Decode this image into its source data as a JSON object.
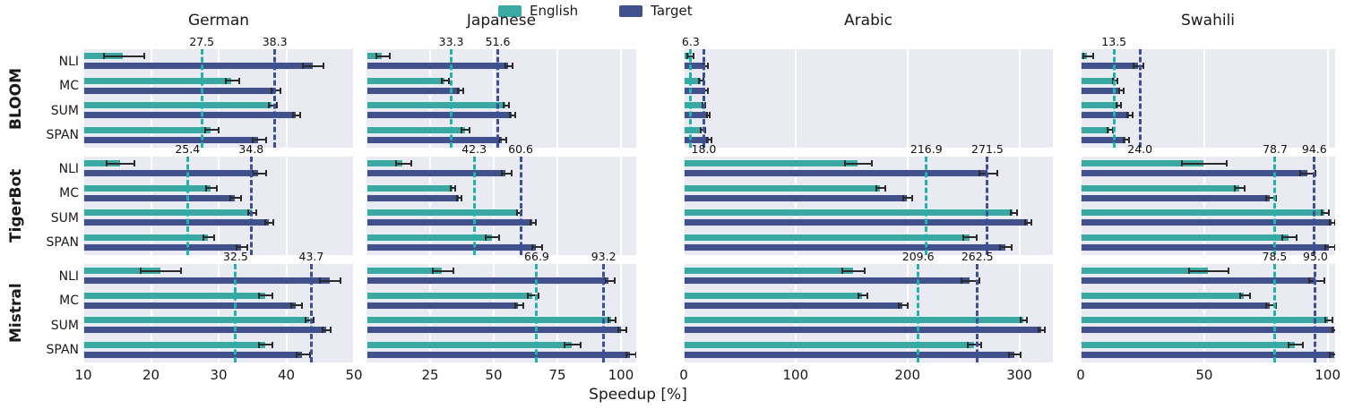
{
  "chart_data": {
    "type": "bar",
    "orientation": "horizontal",
    "xlabel": "Speedup [%]",
    "grid": true,
    "legend": [
      "English",
      "Target"
    ],
    "legend_position": "top-center",
    "colors": {
      "english": "#3ba8a4",
      "target": "#41518c",
      "english_line": "#22b2ae",
      "target_line": "#3b4f9e",
      "panel_bg": "#eaeaf2",
      "grid": "#ffffff",
      "error": "#2b2b2b"
    },
    "categories": [
      "NLI",
      "MC",
      "SUM",
      "SPAN"
    ],
    "columns": [
      {
        "title": "German",
        "xmin": 10,
        "xmax": 50,
        "ticks": [
          10,
          20,
          30,
          40,
          50
        ]
      },
      {
        "title": "Japanese",
        "xmin": 0,
        "xmax": 106,
        "ticks": [
          25,
          50,
          75,
          100
        ]
      },
      {
        "title": "Arabic",
        "xmin": 0,
        "xmax": 330,
        "ticks": [
          0,
          100,
          200,
          300
        ]
      },
      {
        "title": "Swahili",
        "xmin": 0,
        "xmax": 103,
        "ticks": [
          0,
          50,
          100
        ]
      }
    ],
    "rows": [
      {
        "model": "BLOOM",
        "panels": [
          {
            "language": "German",
            "english": [
              16,
              32,
              38,
              29
            ],
            "english_err": [
              3,
              1,
              0.6,
              1
            ],
            "target": [
              44,
              38.5,
              41.5,
              36
            ],
            "target_err": [
              1.5,
              0.7,
              0.5,
              1
            ],
            "vline_english": 27.5,
            "vline_target": 38.3,
            "header_labels": [
              {
                "text": "27.5",
                "value": 27.5
              },
              {
                "text": "38.3",
                "value": 38.3
              }
            ]
          },
          {
            "language": "Japanese",
            "english": [
              6.5,
              31,
              55,
              39
            ],
            "english_err": [
              2.5,
              1.5,
              1,
              1.5
            ],
            "target": [
              56,
              37,
              57.5,
              53.5
            ],
            "target_err": [
              1.5,
              1,
              1,
              1.5
            ],
            "vline_english": 33.3,
            "vline_target": 51.6,
            "header_labels": [
              {
                "text": "33.3",
                "value": 33.3
              },
              {
                "text": "51.6",
                "value": 51.6
              }
            ]
          },
          {
            "language": "Arabic",
            "english": [
              6,
              16,
              18,
              17
            ],
            "english_err": [
              3,
              2,
              1.5,
              2
            ],
            "target": [
              20,
              20,
              22,
              23
            ],
            "target_err": [
              2,
              2,
              1.5,
              2
            ],
            "vline_english": 6.3,
            "vline_target": 18.0,
            "header_labels": [
              {
                "text": "6.3",
                "value": 6.3
              }
            ]
          },
          {
            "language": "Swahili",
            "english": [
              3,
              14,
              15.5,
              12
            ],
            "english_err": [
              2,
              1,
              1,
              1
            ],
            "target": [
              23.5,
              16.5,
              20,
              18.5
            ],
            "target_err": [
              2,
              1,
              1,
              1
            ],
            "vline_english": 13.5,
            "vline_target": 24.0,
            "header_labels": [
              {
                "text": "13.5",
                "value": 13.5
              }
            ]
          }
        ]
      },
      {
        "model": "TigerBot",
        "panels": [
          {
            "language": "German",
            "english": [
              15.5,
              29,
              35,
              28.5
            ],
            "english_err": [
              2,
              0.8,
              0.6,
              0.8
            ],
            "target": [
              36,
              32.5,
              37.5,
              33.5
            ],
            "target_err": [
              1,
              0.8,
              0.6,
              0.8
            ],
            "vline_english": 25.4,
            "vline_target": 34.8,
            "header_labels": [
              {
                "text": "25.4",
                "value": 25.4
              },
              {
                "text": "34.8",
                "value": 34.8
              }
            ]
          },
          {
            "language": "Japanese",
            "english": [
              14.5,
              34,
              60,
              49.5
            ],
            "english_err": [
              3,
              1,
              1,
              2.5
            ],
            "target": [
              55,
              36.5,
              65.5,
              67
            ],
            "target_err": [
              2,
              1,
              1,
              2
            ],
            "vline_english": 42.3,
            "vline_target": 60.6,
            "header_labels": [
              {
                "text": "42.3",
                "value": 42.3
              },
              {
                "text": "60.6",
                "value": 60.6
              }
            ]
          },
          {
            "language": "Arabic",
            "english": [
              156,
              176,
              295,
              256
            ],
            "english_err": [
              12,
              4,
              3,
              6
            ],
            "target": [
              272,
              200,
              308,
              288
            ],
            "target_err": [
              8,
              4,
              3,
              5
            ],
            "vline_english": 216.9,
            "vline_target": 271.5,
            "header_labels": [
              {
                "text": "18.0",
                "value": 18
              },
              {
                "text": "216.9",
                "value": 216.9
              },
              {
                "text": "271.5",
                "value": 271.5
              }
            ]
          },
          {
            "language": "Swahili",
            "english": [
              50,
              64.5,
              99,
              84.5
            ],
            "english_err": [
              9,
              2,
              1.5,
              3
            ],
            "target": [
              92,
              77,
              102,
              101
            ],
            "target_err": [
              3,
              2,
              1,
              2
            ],
            "vline_english": 78.7,
            "vline_target": 94.6,
            "header_labels": [
              {
                "text": "24.0",
                "value": 24
              },
              {
                "text": "78.7",
                "value": 78.7
              },
              {
                "text": "94.6",
                "value": 94.6
              }
            ]
          }
        ]
      },
      {
        "model": "Mistral",
        "panels": [
          {
            "language": "German",
            "english": [
              21.5,
              37,
              43.5,
              37
            ],
            "english_err": [
              3,
              1,
              0.6,
              1
            ],
            "target": [
              46.5,
              41.5,
              46,
              42.5
            ],
            "target_err": [
              1.5,
              0.8,
              0.6,
              1
            ],
            "vline_english": 32.5,
            "vline_target": 43.7,
            "header_labels": [
              {
                "text": "32.5",
                "value": 32.5
              },
              {
                "text": "43.7",
                "value": 43.7
              }
            ]
          },
          {
            "language": "Japanese",
            "english": [
              30,
              65.5,
              96.5,
              81
            ],
            "english_err": [
              4,
              2,
              1.5,
              3
            ],
            "target": [
              95.5,
              60,
              100.5,
              104
            ],
            "target_err": [
              2,
              1.5,
              1.5,
              2
            ],
            "vline_english": 66.9,
            "vline_target": 93.2,
            "header_labels": [
              {
                "text": "66.9",
                "value": 66.9
              },
              {
                "text": "93.2",
                "value": 93.2
              }
            ]
          },
          {
            "language": "Arabic",
            "english": [
              152,
              160,
              304,
              260
            ],
            "english_err": [
              10,
              4,
              3,
              6
            ],
            "target": [
              256,
              196,
              320,
              296
            ],
            "target_err": [
              8,
              4,
              3,
              5
            ],
            "vline_english": 209.6,
            "vline_target": 262.5,
            "header_labels": [
              {
                "text": "209.6",
                "value": 209.6
              },
              {
                "text": "262.5",
                "value": 262.5
              }
            ]
          },
          {
            "language": "Swahili",
            "english": [
              52,
              66.5,
              100.5,
              87
            ],
            "english_err": [
              8,
              2,
              1.5,
              3
            ],
            "target": [
              95.5,
              77,
              103,
              103.5
            ],
            "target_err": [
              3,
              2,
              1,
              2
            ],
            "vline_english": 78.5,
            "vline_target": 95.0,
            "header_labels": [
              {
                "text": "78.5",
                "value": 78.5
              },
              {
                "text": "95.0",
                "value": 95.0
              }
            ]
          }
        ]
      }
    ]
  }
}
